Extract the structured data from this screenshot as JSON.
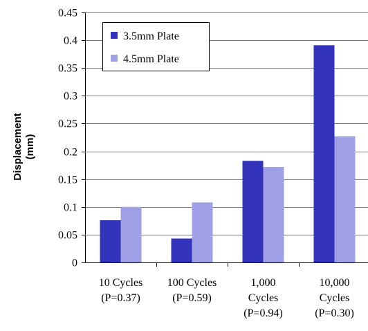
{
  "chart_data": {
    "type": "bar",
    "title": "",
    "xlabel": "",
    "ylabel": [
      "Displacement",
      "(mm)"
    ],
    "ylim": [
      0,
      0.45
    ],
    "y_ticks": [
      "0",
      "0.05",
      "0.1",
      "0.15",
      "0.2",
      "0.25",
      "0.3",
      "0.35",
      "0.4",
      "0.45"
    ],
    "y_tick_values": [
      0,
      0.05,
      0.1,
      0.15,
      0.2,
      0.25,
      0.3,
      0.35,
      0.4,
      0.45
    ],
    "grid": true,
    "legend_position": "top-left",
    "categories": [
      [
        "10 Cycles",
        "(P=0.37)"
      ],
      [
        "100 Cycles",
        "(P=0.59)"
      ],
      [
        "1,000",
        "Cycles",
        "(P=0.94)"
      ],
      [
        "10,000",
        "Cycles",
        "(P=0.30)"
      ]
    ],
    "series": [
      {
        "name": "3.5mm Plate",
        "color": "#3333bb",
        "values": [
          0.076,
          0.043,
          0.183,
          0.391
        ]
      },
      {
        "name": "4.5mm Plate",
        "color": "#a0a0e6",
        "values": [
          0.1,
          0.108,
          0.172,
          0.227
        ]
      }
    ]
  }
}
